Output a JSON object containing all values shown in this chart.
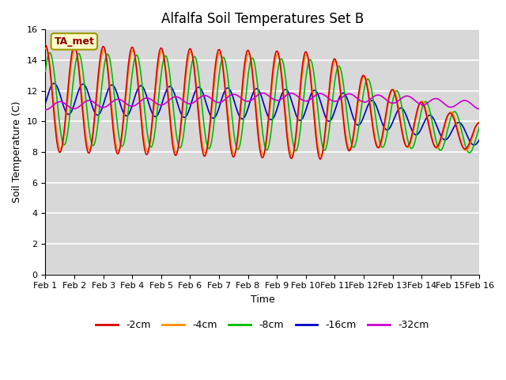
{
  "title": "Alfalfa Soil Temperatures Set B",
  "xlabel": "Time",
  "ylabel": "Soil Temperature (C)",
  "ylim": [
    0,
    16
  ],
  "yticks": [
    0,
    2,
    4,
    6,
    8,
    10,
    12,
    14,
    16
  ],
  "xtick_labels": [
    "Feb 1",
    "Feb 2",
    "Feb 3",
    "Feb 4",
    "Feb 5",
    "Feb 6",
    "Feb 7",
    "Feb 8",
    "Feb 9",
    "Feb 10",
    "Feb 11",
    "Feb 12",
    "Feb 13",
    "Feb 14",
    "Feb 15",
    "Feb 16"
  ],
  "series": {
    "-2cm": {
      "color": "#dd0000",
      "linewidth": 1.2
    },
    "-4cm": {
      "color": "#ff8c00",
      "linewidth": 1.2
    },
    "-8cm": {
      "color": "#00bb00",
      "linewidth": 1.2
    },
    "-16cm": {
      "color": "#0000cc",
      "linewidth": 1.2
    },
    "-32cm": {
      "color": "#cc00cc",
      "linewidth": 1.2
    }
  },
  "legend_labels": [
    "-2cm",
    "-4cm",
    "-8cm",
    "-16cm",
    "-32cm"
  ],
  "legend_colors": [
    "#dd0000",
    "#ff8c00",
    "#00bb00",
    "#0000cc",
    "#cc00cc"
  ],
  "annotation_text": "TA_met",
  "bg_color": "#d8d8d8",
  "fig_color": "#ffffff",
  "title_fontsize": 12,
  "axis_fontsize": 9,
  "tick_fontsize": 8
}
